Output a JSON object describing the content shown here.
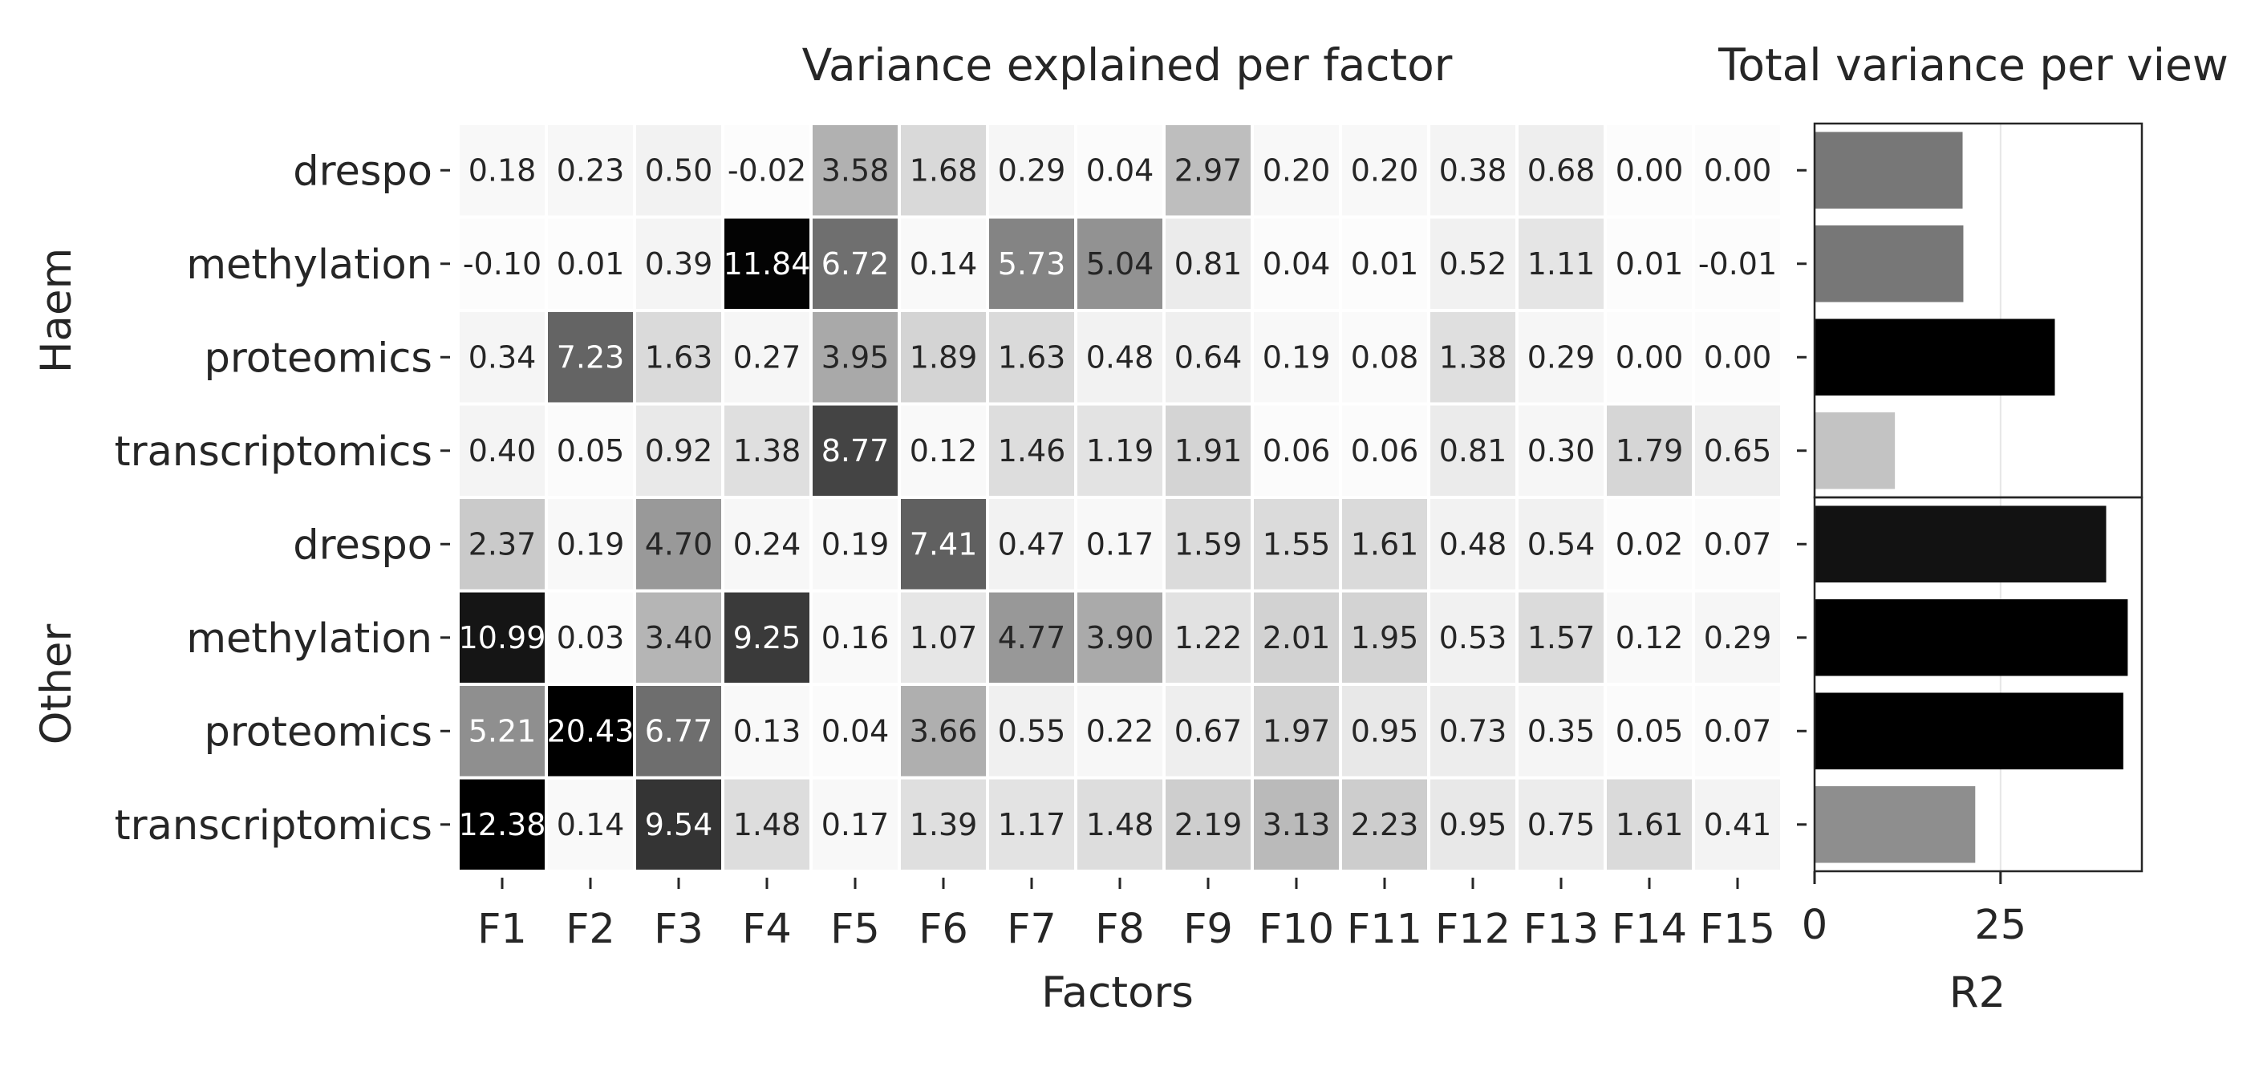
{
  "chart_data": [
    {
      "type": "heatmap",
      "title": "Variance explained per factor",
      "xlabel": "Factors",
      "ylabel": "",
      "groups": [
        {
          "name": "Haem",
          "views": [
            "drespo",
            "methylation",
            "proteomics",
            "transcriptomics"
          ]
        },
        {
          "name": "Other",
          "views": [
            "drespo",
            "methylation",
            "proteomics",
            "transcriptomics"
          ]
        }
      ],
      "x": [
        "F1",
        "F2",
        "F3",
        "F4",
        "F5",
        "F6",
        "F7",
        "F8",
        "F9",
        "F10",
        "F11",
        "F12",
        "F13",
        "F14",
        "F15"
      ],
      "values": [
        [
          0.18,
          0.23,
          0.5,
          -0.02,
          3.58,
          1.68,
          0.29,
          0.04,
          2.97,
          0.2,
          0.2,
          0.38,
          0.68,
          0.0,
          0.0
        ],
        [
          -0.1,
          0.01,
          0.39,
          11.84,
          6.72,
          0.14,
          5.73,
          5.04,
          0.81,
          0.04,
          0.01,
          0.52,
          1.11,
          0.01,
          -0.01
        ],
        [
          0.34,
          7.23,
          1.63,
          0.27,
          3.95,
          1.89,
          1.63,
          0.48,
          0.64,
          0.19,
          0.08,
          1.38,
          0.29,
          0.0,
          0.0
        ],
        [
          0.4,
          0.05,
          0.92,
          1.38,
          8.77,
          0.12,
          1.46,
          1.19,
          1.91,
          0.06,
          0.06,
          0.81,
          0.3,
          1.79,
          0.65
        ],
        [
          2.37,
          0.19,
          4.7,
          0.24,
          0.19,
          7.41,
          0.47,
          0.17,
          1.59,
          1.55,
          1.61,
          0.48,
          0.54,
          0.02,
          0.07
        ],
        [
          10.99,
          0.03,
          3.4,
          9.25,
          0.16,
          1.07,
          4.77,
          3.9,
          1.22,
          2.01,
          1.95,
          0.53,
          1.57,
          0.12,
          0.29
        ],
        [
          5.21,
          20.43,
          6.77,
          0.13,
          0.04,
          3.66,
          0.55,
          0.22,
          0.67,
          1.97,
          0.95,
          0.73,
          0.35,
          0.05,
          0.07
        ],
        [
          12.38,
          0.14,
          9.54,
          1.48,
          0.17,
          1.39,
          1.17,
          1.48,
          2.19,
          3.13,
          2.23,
          0.95,
          0.75,
          1.61,
          0.41
        ]
      ],
      "colormap": "greys"
    },
    {
      "type": "bar",
      "orientation": "horizontal",
      "title": "Total variance per view",
      "xlabel": "R2",
      "ylabel": "",
      "categories": [
        "Haem drespo",
        "Haem methylation",
        "Haem proteomics",
        "Haem transcriptomics",
        "Other drespo",
        "Other methylation",
        "Other proteomics",
        "Other transcriptomics"
      ],
      "values": [
        19.9,
        20.0,
        32.3,
        10.8,
        39.2,
        42.1,
        41.5,
        21.6
      ],
      "xlim": [
        0,
        44
      ],
      "xticks": [
        "0",
        "25"
      ],
      "grid": true,
      "bar_colors": [
        "#777777",
        "#777777",
        "#000000",
        "#c3c3c3",
        "#121212",
        "#000000",
        "#000000",
        "#8e8e8e"
      ]
    }
  ]
}
